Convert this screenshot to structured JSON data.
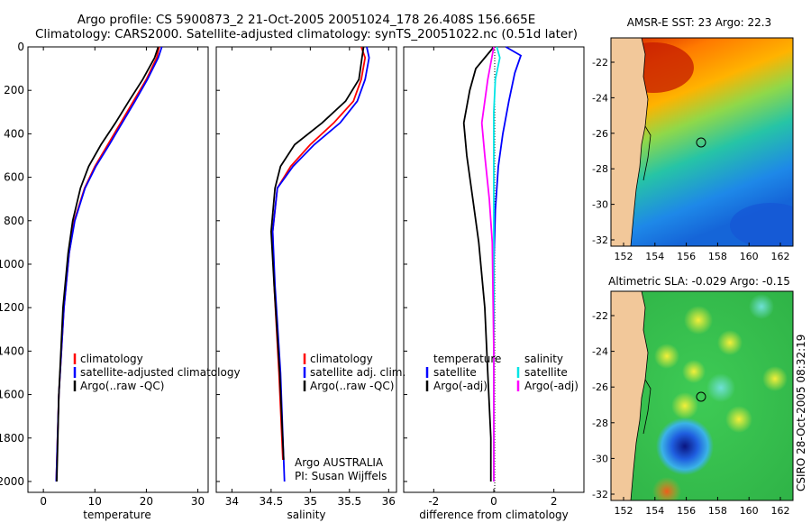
{
  "header": {
    "line1": "Argo profile: CS 5900873_2 21-Oct-2005 20051024_178 26.408S 156.665E",
    "line2": "Climatology: CARS2000. Satellite-adjusted climatology: synTS_20051022.nc (0.51d later)"
  },
  "side_label": "CSIRO 28-Oct-2005 08:32:19",
  "colors": {
    "climatology": "#ff0000",
    "satellite": "#0000ff",
    "argo": "#000000",
    "sal_satellite": "#00e5e5",
    "sal_argo": "#ff00ff",
    "land": "#f2c89a"
  },
  "chart_data": [
    {
      "id": "temperature",
      "type": "line",
      "xlabel": "temperature",
      "ylabel": "",
      "xlim": [
        -3,
        32
      ],
      "ylim": [
        2050,
        0
      ],
      "xticks": [
        0,
        10,
        20,
        30
      ],
      "yticks": [
        0,
        200,
        400,
        600,
        800,
        1000,
        1200,
        1400,
        1600,
        1800,
        2000
      ],
      "legend": [
        "climatology",
        "satellite-adjusted climatology",
        "Argo(..raw -QC)"
      ],
      "series": [
        {
          "name": "climatology",
          "color": "#ff0000",
          "x": [
            22.5,
            22.0,
            20.0,
            17.5,
            15.0,
            12.5,
            10.0,
            8.0,
            6.0,
            5.0,
            4.0,
            3.0,
            2.5
          ],
          "y": [
            0,
            50,
            150,
            250,
            350,
            450,
            550,
            650,
            800,
            950,
            1200,
            1600,
            2000
          ]
        },
        {
          "name": "satellite",
          "color": "#0000ff",
          "x": [
            23.0,
            22.3,
            20.2,
            17.8,
            15.3,
            12.8,
            10.2,
            8.1,
            6.1,
            5.0,
            4.0,
            3.0,
            2.5
          ],
          "y": [
            0,
            50,
            150,
            250,
            350,
            450,
            550,
            650,
            800,
            950,
            1200,
            1600,
            2000
          ]
        },
        {
          "name": "Argo",
          "color": "#000000",
          "x": [
            22.3,
            21.6,
            19.3,
            16.6,
            14.0,
            11.2,
            8.8,
            7.2,
            5.7,
            4.8,
            3.8,
            3.0,
            2.6
          ],
          "y": [
            0,
            50,
            150,
            250,
            350,
            450,
            550,
            650,
            800,
            950,
            1200,
            1600,
            2000
          ]
        }
      ]
    },
    {
      "id": "salinity",
      "type": "line",
      "xlabel": "salinity",
      "xlim": [
        33.8,
        36.1
      ],
      "ylim": [
        2050,
        0
      ],
      "xticks": [
        34,
        34.5,
        35,
        35.5,
        36
      ],
      "xticklabels": [
        "34",
        "34.5",
        "35",
        "35.5",
        "36"
      ],
      "legend": [
        "climatology",
        "satellite adj. clim.",
        "Argo(..raw -QC)"
      ],
      "note_line1": "Argo AUSTRALIA",
      "note_line2": "PI: Susan Wijffels",
      "series": [
        {
          "name": "climatology",
          "color": "#ff0000",
          "x": [
            35.65,
            35.7,
            35.65,
            35.55,
            35.3,
            35.0,
            34.75,
            34.58,
            34.52,
            34.54,
            34.6,
            34.65
          ],
          "y": [
            0,
            50,
            150,
            250,
            350,
            450,
            550,
            650,
            850,
            1100,
            1500,
            1900
          ]
        },
        {
          "name": "satellite",
          "color": "#0000ff",
          "x": [
            35.72,
            35.75,
            35.7,
            35.6,
            35.38,
            35.05,
            34.78,
            34.58,
            34.52,
            34.55,
            34.62,
            34.67
          ],
          "y": [
            0,
            50,
            150,
            250,
            350,
            450,
            550,
            650,
            850,
            1100,
            1500,
            2000
          ]
        },
        {
          "name": "Argo",
          "color": "#000000",
          "x": [
            35.68,
            35.66,
            35.62,
            35.45,
            35.15,
            34.8,
            34.62,
            34.55,
            34.5,
            34.54,
            34.61,
            34.66
          ],
          "y": [
            0,
            50,
            150,
            250,
            350,
            450,
            550,
            650,
            850,
            1100,
            1500,
            1900
          ]
        }
      ]
    },
    {
      "id": "difference",
      "type": "line",
      "xlabel": "difference from climatology",
      "xlim": [
        -3,
        3
      ],
      "ylim": [
        2050,
        0
      ],
      "xticks": [
        -2,
        0,
        2
      ],
      "legend_left_title": "temperature",
      "legend_right_title": "salinity",
      "legend_left": [
        "satellite",
        "Argo(-adj)"
      ],
      "legend_right": [
        "satellite",
        "Argo(-adj)"
      ],
      "series": [
        {
          "name": "temperature satellite",
          "color": "#0000ff",
          "x": [
            0.4,
            0.9,
            0.7,
            0.5,
            0.3,
            0.15,
            0.05,
            0.0,
            0.0
          ],
          "y": [
            0,
            40,
            120,
            250,
            400,
            550,
            750,
            1000,
            1300
          ]
        },
        {
          "name": "temperature Argo",
          "color": "#000000",
          "x": [
            0.0,
            -0.6,
            -0.8,
            -1.0,
            -0.9,
            -0.7,
            -0.5,
            -0.3,
            -0.2,
            -0.1,
            -0.1
          ],
          "y": [
            0,
            100,
            200,
            350,
            500,
            700,
            900,
            1200,
            1500,
            1800,
            2000
          ]
        },
        {
          "name": "salinity satellite",
          "color": "#00e5e5",
          "x": [
            0.1,
            0.2,
            0.05,
            0.0,
            0.0,
            0.0,
            0.0,
            0.0
          ],
          "y": [
            0,
            50,
            150,
            300,
            600,
            1000,
            1500,
            2000
          ]
        },
        {
          "name": "salinity Argo",
          "color": "#ff00ff",
          "x": [
            0.0,
            -0.2,
            -0.3,
            -0.4,
            -0.3,
            -0.15,
            -0.05,
            0.0,
            0.0
          ],
          "y": [
            0,
            150,
            250,
            350,
            500,
            700,
            900,
            1400,
            2000
          ]
        }
      ]
    }
  ],
  "maps": [
    {
      "id": "sst-map",
      "title": "AMSR-E SST: 23 Argo: 22.3",
      "xticks": [
        "152",
        "154",
        "156",
        "158",
        "160",
        "162"
      ],
      "yticks": [
        "-22",
        "-24",
        "-26",
        "-28",
        "-30",
        "-32"
      ]
    },
    {
      "id": "sla-map",
      "title": "Altimetric SLA: -0.029 Argo: -0.15",
      "xticks": [
        "152",
        "154",
        "156",
        "158",
        "160",
        "162"
      ],
      "yticks": [
        "-22",
        "-24",
        "-26",
        "-28",
        "-30",
        "-32"
      ]
    }
  ]
}
